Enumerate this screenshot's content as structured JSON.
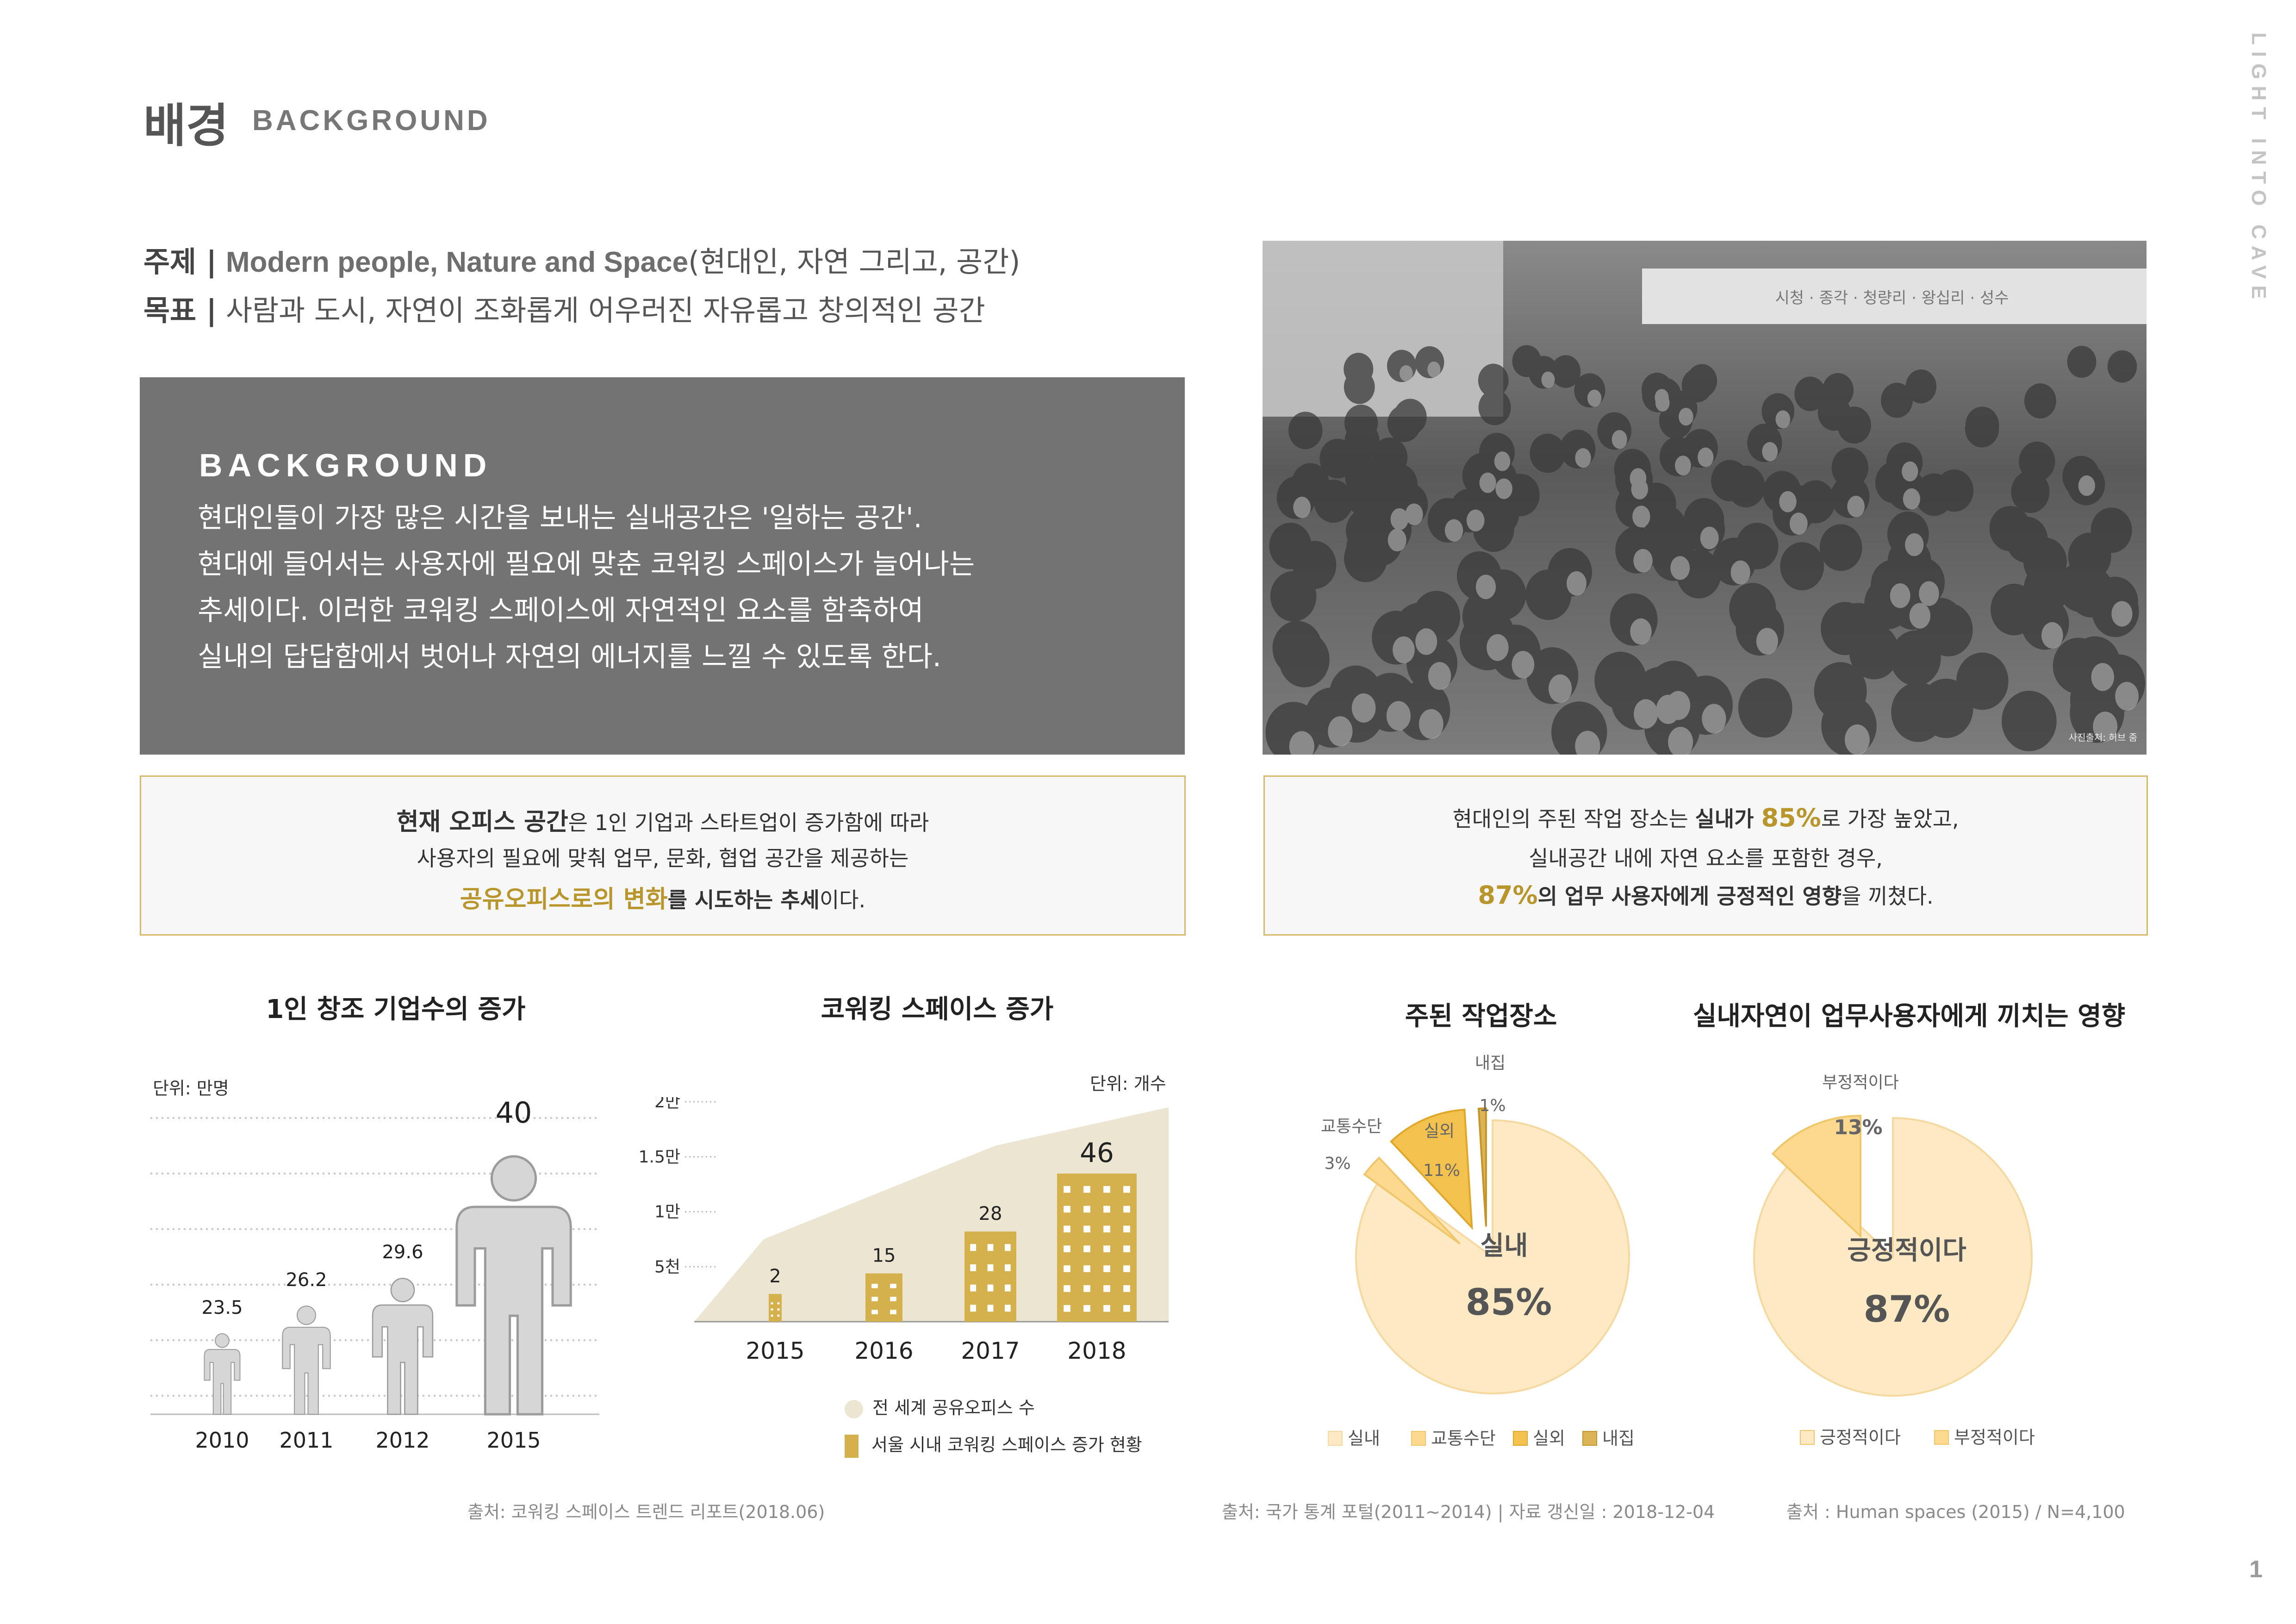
{
  "header": {
    "title_ko": "배경",
    "title_en": "BACKGROUND",
    "side_label": "LIGHT INTO CAVE",
    "page_number": "1"
  },
  "subject": {
    "topic_label": "주제 |",
    "topic_en": "Modern people, Nature and Space",
    "topic_ko": "(현대인, 자연 그리고, 공간)",
    "goal_label": "목표 |",
    "goal_text": "사람과 도시, 자연이 조화롭게 어우러진 자유롭고 창의적인 공간"
  },
  "background_box": {
    "heading": "BACKGROUND",
    "lines": [
      "현대인들이 가장 많은 시간을 보내는 실내공간은 '일하는 공간'.",
      "현대에 들어서는 사용자에 필요에 맞춘 코워킹 스페이스가 늘어나는",
      "추세이다. 이러한 코워킹 스페이스에 자연적인 요소를 함축하여",
      "실내의 답답함에서 벗어나 자연의 에너지를 느낄 수 있도록 한다."
    ]
  },
  "photo": {
    "credit": "사진출처: 허브 줌",
    "sign_text": "시청 · 종각 · 청량리 · 왕십리 · 성수"
  },
  "note_left": {
    "l1_bold": "현재 오피스 공간",
    "l1_rest": "은 1인 기업과 스타트업이 증가함에 따라",
    "l2": "사용자의 필요에 맞춰  업무, 문화, 협업 공간을 제공하는",
    "l3_gold": "공유오피스로의 변화",
    "l3_bold": "를 시도하는 추세",
    "l3_rest": "이다."
  },
  "note_right": {
    "l1_a": "현대인의 주된 작업 장소는 ",
    "l1_bold": "실내가 ",
    "l1_gold": "85%",
    "l1_rest": "로 가장 높았고,",
    "l2": "실내공간 내에 자연 요소를 포함한 경우,",
    "l3_gold": "87%",
    "l3_bold": "의 업무 사용자에게 긍정적인 영향",
    "l3_rest": "을 끼쳤다."
  },
  "sources": {
    "left": "출처: 코워킹 스페이스 트렌드 리포트(2018.06)",
    "middle": "출처: 국가 통계 포털(2011~2014) | 자료 갱신일 : 2018-12-04",
    "right": "출처 : Human spaces (2015) / N=4,100"
  },
  "colors": {
    "gold": "#b9962b",
    "dark_gold": "#d4b14c",
    "light_beige": "#ece5d2",
    "pie_light": "#fde9c3",
    "pie_mid": "#fcd98f",
    "pie_dark": "#f3c24e",
    "person_gray": "#d6d6d6"
  },
  "chart_data": [
    {
      "type": "bar",
      "title": "1인 창조 기업수의 증가",
      "unit": "단위: 만명",
      "categories": [
        "2010",
        "2011",
        "2012",
        "2015"
      ],
      "values": [
        23.5,
        26.2,
        29.6,
        40
      ],
      "value_labels": [
        "23.5",
        "26.2",
        "29.6",
        "40"
      ],
      "grid": true
    },
    {
      "type": "area",
      "title": "코워킹 스페이스 증가",
      "unit": "단위: 개수",
      "y_ticks": [
        "5천",
        "1.5만",
        "1만",
        "2만"
      ],
      "categories": [
        "2015",
        "2016",
        "2017",
        "2018"
      ],
      "series": [
        {
          "name": "전 세계 공유오피스 수",
          "values": [
            7500,
            12500,
            16000,
            19500
          ]
        },
        {
          "name": "서울 시내 코워킹 스페이스 증가 현황",
          "values": [
            2,
            15,
            28,
            46
          ]
        }
      ],
      "value_labels": [
        "2",
        "15",
        "28",
        "46"
      ]
    },
    {
      "type": "pie",
      "title": "주된 작업장소",
      "labels": [
        "실내",
        "교통수단",
        "실외",
        "내집"
      ],
      "values": [
        85,
        3,
        11,
        1
      ],
      "value_labels": [
        "85%",
        "3%",
        "11%",
        "1%"
      ],
      "legend": [
        "실내",
        "교통수단",
        "실외",
        "내집"
      ]
    },
    {
      "type": "pie",
      "title": "실내자연이 업무사용자에게 끼치는 영향",
      "labels": [
        "긍정적이다",
        "부정적이다"
      ],
      "values": [
        87,
        13
      ],
      "value_labels": [
        "87%",
        "13%"
      ],
      "legend": [
        "긍정적이다",
        "부정적이다"
      ]
    }
  ]
}
